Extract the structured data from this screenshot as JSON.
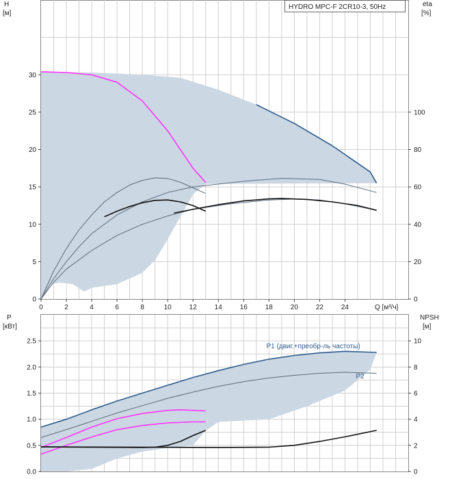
{
  "colors": {
    "grid": "#cfcfcf",
    "envelope_fill": "#cbd7e3",
    "envelope_edge": "#2d5b8c",
    "magenta": "#ff33ff",
    "black": "#111111",
    "thin_gray": "#5b6b7b",
    "axis": "#444444"
  },
  "chart_data": [
    {
      "type": "line",
      "panel": "head-efficiency",
      "title": "HYDRO MPC-F 2CR10-3, 50Hz",
      "left_axis": {
        "label_top": "H",
        "label_unit": "[м]",
        "ylim": [
          0,
          40
        ],
        "ticks": [
          "0",
          "5",
          "10",
          "15",
          "20",
          "25",
          "30"
        ],
        "tick_values": [
          0,
          5,
          10,
          15,
          20,
          25,
          30
        ]
      },
      "right_axis": {
        "label_top": "eta",
        "label_unit": "[%]",
        "ylim": [
          0,
          160
        ],
        "ticks": [
          "0",
          "20",
          "40",
          "60",
          "80",
          "100"
        ],
        "tick_values": [
          0,
          20,
          40,
          60,
          80,
          100
        ]
      },
      "x_axis": {
        "label": "Q [м³/ч]",
        "xlim": [
          0,
          29
        ],
        "ticks": [
          "0",
          "2",
          "4",
          "6",
          "8",
          "10",
          "12",
          "14",
          "16",
          "18",
          "20",
          "22",
          "24"
        ],
        "tick_values": [
          0,
          2,
          4,
          6,
          8,
          10,
          12,
          14,
          16,
          18,
          20,
          22,
          24
        ]
      },
      "envelope": {
        "upper": [
          [
            0,
            30.4
          ],
          [
            4,
            30.3
          ],
          [
            8,
            30.0
          ],
          [
            11,
            29.6
          ],
          [
            14,
            28.0
          ],
          [
            17,
            26.0
          ],
          [
            20,
            23.5
          ],
          [
            23,
            20.5
          ],
          [
            26,
            17.0
          ],
          [
            26.5,
            15.5
          ]
        ],
        "lower": [
          [
            26.5,
            15.5
          ],
          [
            13,
            15.4
          ],
          [
            12,
            14.0
          ],
          [
            11,
            11.0
          ],
          [
            10,
            8.0
          ],
          [
            9,
            5.2
          ],
          [
            8,
            3.5
          ],
          [
            6,
            2.0
          ],
          [
            4,
            1.5
          ],
          [
            3.4,
            1.0
          ],
          [
            2.5,
            2.0
          ],
          [
            1.5,
            2.2
          ],
          [
            0.8,
            2.0
          ],
          [
            0,
            0
          ]
        ]
      },
      "series": [
        {
          "role": "head-1pump",
          "color_key": "magenta",
          "points": [
            [
              0,
              30.4
            ],
            [
              2,
              30.3
            ],
            [
              4,
              30.0
            ],
            [
              6,
              29.0
            ],
            [
              8,
              26.5
            ],
            [
              10,
              22.5
            ],
            [
              12,
              17.5
            ],
            [
              13,
              15.6
            ]
          ]
        },
        {
          "role": "eta-thin-1",
          "axis": "right",
          "color_key": "thin_gray",
          "points": [
            [
              0,
              0
            ],
            [
              1,
              15
            ],
            [
              2,
              27
            ],
            [
              3,
              37
            ],
            [
              4,
              45
            ],
            [
              5,
              52
            ],
            [
              6,
              57
            ],
            [
              7,
              61
            ],
            [
              8,
              63.5
            ],
            [
              9,
              64.8
            ],
            [
              10,
              64.5
            ],
            [
              11,
              62.5
            ],
            [
              12,
              59.5
            ],
            [
              13,
              56.5
            ]
          ]
        },
        {
          "role": "eta-thin-2",
          "axis": "right",
          "color_key": "thin_gray",
          "points": [
            [
              0,
              0
            ],
            [
              1,
              11
            ],
            [
              2,
              20
            ],
            [
              3,
              28
            ],
            [
              4,
              35
            ],
            [
              6,
              45
            ],
            [
              8,
              52
            ],
            [
              10,
              57
            ],
            [
              12,
              60
            ],
            [
              14,
              61.5
            ],
            [
              16,
              63
            ],
            [
              19,
              64.6
            ],
            [
              22,
              64
            ],
            [
              24,
              61.5
            ],
            [
              26.5,
              57
            ]
          ]
        },
        {
          "role": "eta-thin-3",
          "axis": "right",
          "color_key": "thin_gray",
          "points": [
            [
              0,
              0
            ],
            [
              1,
              9
            ],
            [
              2,
              16
            ],
            [
              4,
              26
            ],
            [
              6,
              34
            ],
            [
              8,
              40
            ],
            [
              10,
              44.5
            ],
            [
              12,
              48
            ],
            [
              15,
              51
            ],
            [
              18,
              53
            ],
            [
              20,
              53.5
            ],
            [
              22,
              53
            ],
            [
              24,
              51
            ],
            [
              26.5,
              47.5
            ]
          ]
        },
        {
          "role": "eta-bold-1",
          "axis": "right",
          "color_key": "black",
          "points": [
            [
              5,
              44
            ],
            [
              6,
              47
            ],
            [
              7,
              49.5
            ],
            [
              8,
              51.5
            ],
            [
              9,
              52.8
            ],
            [
              10,
              53
            ],
            [
              11,
              52
            ],
            [
              12,
              50
            ],
            [
              13,
              47
            ]
          ]
        },
        {
          "role": "eta-bold-2",
          "axis": "right",
          "color_key": "black",
          "points": [
            [
              10.5,
              46
            ],
            [
              12,
              48
            ],
            [
              14,
              50.5
            ],
            [
              16,
              52.5
            ],
            [
              18,
              53.6
            ],
            [
              19,
              53.8
            ],
            [
              21,
              53.3
            ],
            [
              23,
              52
            ],
            [
              25,
              50
            ],
            [
              26.5,
              47.5
            ]
          ]
        },
        {
          "role": "head-envelope-edge",
          "color_key": "envelope_edge",
          "points": [
            [
              17,
              26.0
            ],
            [
              20,
              23.5
            ],
            [
              23,
              20.5
            ],
            [
              26,
              17.0
            ],
            [
              26.5,
              15.5
            ]
          ]
        }
      ]
    },
    {
      "type": "line",
      "panel": "power-npsh",
      "left_axis": {
        "label_top": "P",
        "label_unit": "[кВт]",
        "ylim": [
          0,
          3.0
        ],
        "ticks": [
          "0.0",
          "0.5",
          "1.0",
          "1.5",
          "2.0",
          "2.5"
        ],
        "tick_values": [
          0,
          0.5,
          1.0,
          1.5,
          2.0,
          2.5
        ]
      },
      "right_axis": {
        "label_top": "NPSH",
        "label_unit": "[м]",
        "ylim": [
          0,
          12
        ],
        "ticks": [
          "0",
          "2",
          "4",
          "6",
          "8",
          "10"
        ],
        "tick_values": [
          0,
          2,
          4,
          6,
          8,
          10
        ]
      },
      "x_axis": {
        "xlim": [
          0,
          29
        ]
      },
      "envelope": {
        "upper": [
          [
            0,
            0.85
          ],
          [
            4,
            1.18
          ],
          [
            8,
            1.5
          ],
          [
            12,
            1.8
          ],
          [
            16,
            2.05
          ],
          [
            20,
            2.22
          ],
          [
            24,
            2.3
          ],
          [
            26.5,
            2.28
          ]
        ],
        "lower": [
          [
            26.5,
            2.28
          ],
          [
            26,
            1.95
          ],
          [
            24,
            1.55
          ],
          [
            21,
            1.25
          ],
          [
            18,
            1.0
          ],
          [
            14,
            0.95
          ],
          [
            13,
            0.78
          ],
          [
            12,
            0.5
          ],
          [
            10,
            0.45
          ],
          [
            8,
            0.38
          ],
          [
            6,
            0.25
          ],
          [
            4,
            0.05
          ],
          [
            2,
            0
          ],
          [
            0,
            0
          ]
        ]
      },
      "annotations": [
        {
          "text": "P1 (двиг.+преобр-ль частоты)",
          "x": 21.5,
          "y": 2.36
        },
        {
          "text": "P2",
          "x": 25.2,
          "y": 1.78
        }
      ],
      "series": [
        {
          "name": "P1 (двиг.+преобр-ль частоты)",
          "color_key": "envelope_edge",
          "points": [
            [
              0,
              0.85
            ],
            [
              2,
              1.0
            ],
            [
              4,
              1.18
            ],
            [
              6,
              1.35
            ],
            [
              8,
              1.5
            ],
            [
              10,
              1.65
            ],
            [
              12,
              1.8
            ],
            [
              14,
              1.93
            ],
            [
              16,
              2.05
            ],
            [
              18,
              2.15
            ],
            [
              20,
              2.22
            ],
            [
              22,
              2.27
            ],
            [
              24,
              2.3
            ],
            [
              26.5,
              2.28
            ]
          ]
        },
        {
          "name": "P2",
          "color_key": "thin_gray",
          "points": [
            [
              0,
              0.65
            ],
            [
              2,
              0.8
            ],
            [
              4,
              0.96
            ],
            [
              6,
              1.12
            ],
            [
              8,
              1.26
            ],
            [
              10,
              1.4
            ],
            [
              12,
              1.52
            ],
            [
              14,
              1.63
            ],
            [
              16,
              1.72
            ],
            [
              18,
              1.79
            ],
            [
              20,
              1.84
            ],
            [
              22,
              1.88
            ],
            [
              24,
              1.9
            ],
            [
              26.5,
              1.88
            ]
          ]
        },
        {
          "role": "p1-1pump",
          "color_key": "magenta",
          "points": [
            [
              0,
              0.46
            ],
            [
              2,
              0.65
            ],
            [
              4,
              0.85
            ],
            [
              6,
              1.01
            ],
            [
              8,
              1.11
            ],
            [
              10,
              1.17
            ],
            [
              11,
              1.18
            ],
            [
              12,
              1.17
            ],
            [
              13,
              1.16
            ]
          ]
        },
        {
          "role": "p2-1pump",
          "color_key": "magenta",
          "points": [
            [
              0,
              0.33
            ],
            [
              2,
              0.5
            ],
            [
              4,
              0.66
            ],
            [
              6,
              0.8
            ],
            [
              8,
              0.88
            ],
            [
              10,
              0.93
            ],
            [
              12,
              0.95
            ],
            [
              13,
              0.95
            ]
          ]
        },
        {
          "role": "npsh-1",
          "axis": "right",
          "color_key": "black",
          "points": [
            [
              0,
              1.88
            ],
            [
              4,
              1.86
            ],
            [
              8,
              1.84
            ],
            [
              9,
              1.86
            ],
            [
              10,
              2.0
            ],
            [
              11,
              2.3
            ],
            [
              12,
              2.75
            ],
            [
              13,
              3.15
            ]
          ]
        },
        {
          "role": "npsh-2",
          "axis": "right",
          "color_key": "black",
          "points": [
            [
              0,
              1.88
            ],
            [
              8,
              1.86
            ],
            [
              14,
              1.84
            ],
            [
              18,
              1.86
            ],
            [
              20,
              2.0
            ],
            [
              22,
              2.3
            ],
            [
              24,
              2.65
            ],
            [
              26.5,
              3.15
            ]
          ]
        }
      ]
    }
  ]
}
